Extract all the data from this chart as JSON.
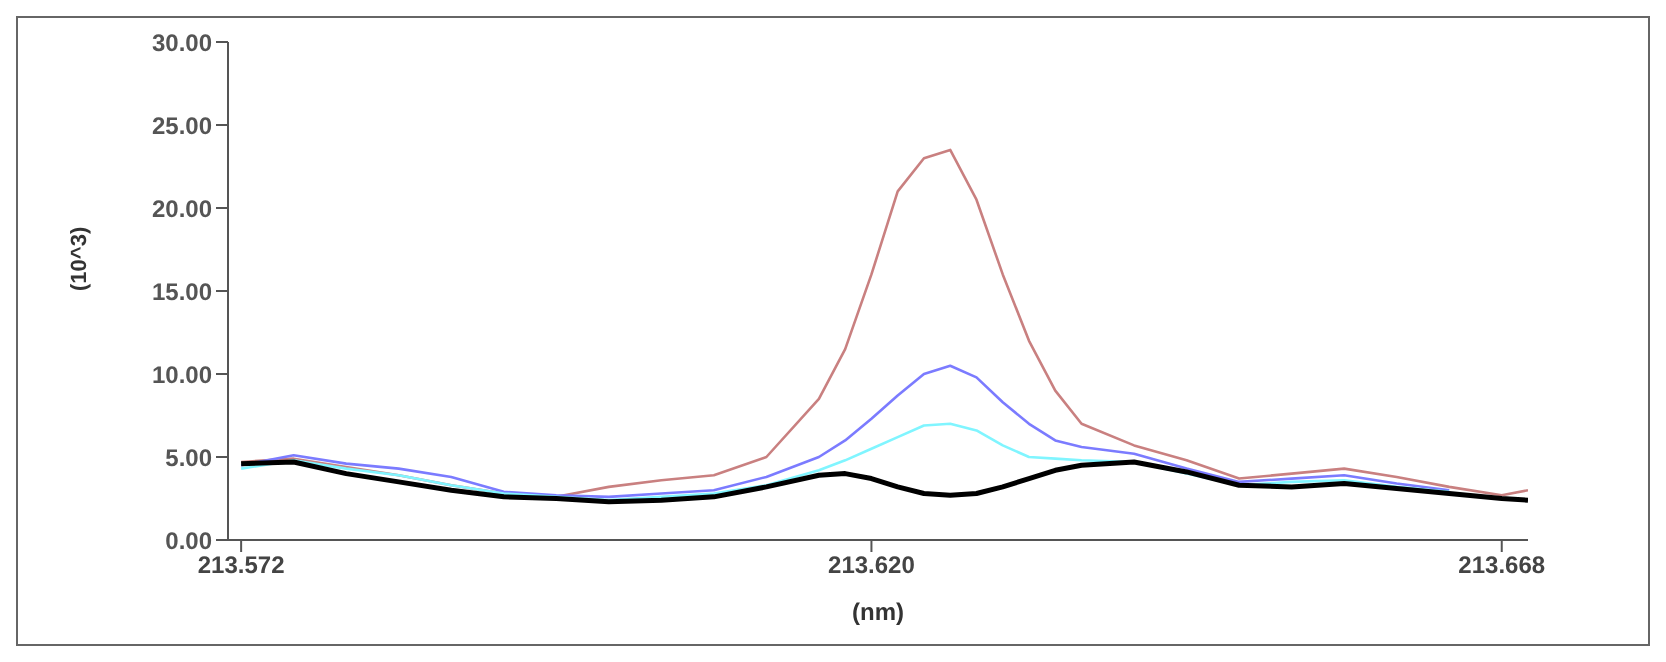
{
  "chart_data": {
    "type": "line",
    "xlabel": "(nm)",
    "ylabel": "(10^3)",
    "x": [
      213.572,
      213.576,
      213.58,
      213.584,
      213.588,
      213.592,
      213.596,
      213.6,
      213.604,
      213.608,
      213.612,
      213.616,
      213.618,
      213.62,
      213.622,
      213.624,
      213.626,
      213.628,
      213.63,
      213.632,
      213.634,
      213.636,
      213.64,
      213.644,
      213.648,
      213.652,
      213.656,
      213.66,
      213.664,
      213.668,
      213.67
    ],
    "series": [
      {
        "color": "#c98080",
        "values": [
          4.7,
          4.9,
          4.4,
          3.9,
          3.3,
          2.8,
          2.6,
          3.2,
          3.6,
          3.9,
          5.0,
          8.5,
          11.5,
          16.0,
          21.0,
          23.0,
          23.5,
          20.5,
          16.0,
          12.0,
          9.0,
          7.0,
          5.7,
          4.8,
          3.7,
          4.0,
          4.3,
          3.8,
          3.2,
          2.7,
          3.0
        ]
      },
      {
        "color": "#7b7bff",
        "values": [
          4.5,
          5.1,
          4.6,
          4.3,
          3.8,
          2.9,
          2.7,
          2.6,
          2.8,
          3.0,
          3.8,
          5.0,
          6.0,
          7.3,
          8.7,
          10.0,
          10.5,
          9.8,
          8.3,
          7.0,
          6.0,
          5.6,
          5.2,
          4.3,
          3.5,
          3.7,
          3.9,
          3.4,
          3.0,
          null,
          null
        ]
      },
      {
        "color": "#80f5ff",
        "values": [
          4.3,
          4.8,
          4.3,
          3.9,
          3.3,
          2.8,
          2.6,
          2.4,
          2.6,
          2.8,
          3.3,
          4.2,
          4.8,
          5.5,
          6.2,
          6.9,
          7.0,
          6.6,
          5.7,
          5.0,
          4.9,
          4.8,
          4.7,
          4.0,
          3.3,
          3.5,
          3.6,
          3.2,
          2.9,
          null,
          null
        ]
      },
      {
        "color": "#000000",
        "values": [
          4.6,
          4.7,
          4.0,
          3.5,
          3.0,
          2.6,
          2.5,
          2.3,
          2.4,
          2.6,
          3.2,
          3.9,
          4.0,
          3.7,
          3.2,
          2.8,
          2.7,
          2.8,
          3.2,
          3.7,
          4.2,
          4.5,
          4.7,
          4.1,
          3.3,
          3.2,
          3.4,
          3.1,
          2.8,
          2.5,
          2.4
        ]
      }
    ],
    "xlim": [
      213.571,
      213.67
    ],
    "xticks": [
      213.572,
      {
        "value": 213.62,
        "label": "213.620"
      },
      213.668
    ],
    "ylim": [
      0,
      30
    ],
    "yticks": [
      {
        "value": 0,
        "label": "0.00"
      },
      {
        "value": 5,
        "label": "5.00"
      },
      {
        "value": 10,
        "label": "10.00"
      },
      {
        "value": 15,
        "label": "15.00"
      },
      {
        "value": 20,
        "label": "20.00"
      },
      {
        "value": 25,
        "label": "25.00"
      },
      {
        "value": 30,
        "label": "30.00"
      }
    ],
    "grid": false,
    "legend": false,
    "marker": "none",
    "line_style": "solid"
  }
}
